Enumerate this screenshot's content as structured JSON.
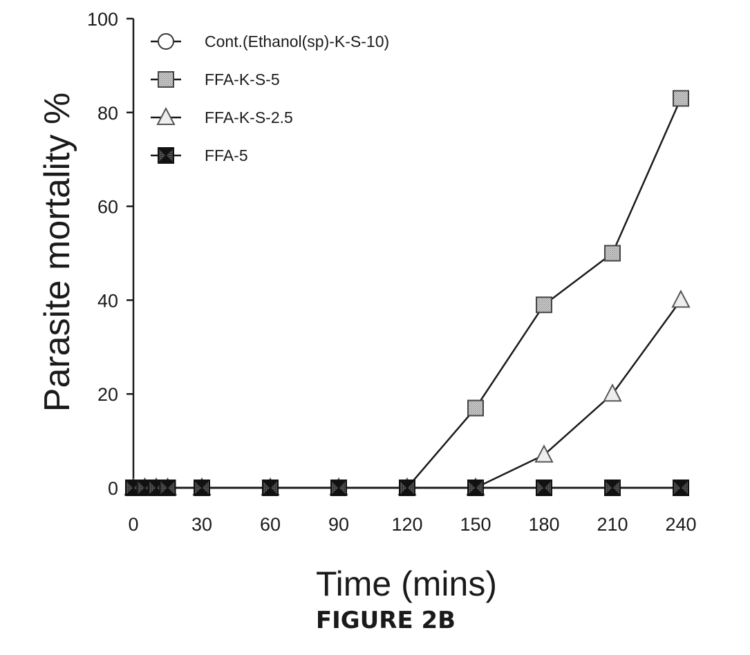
{
  "caption": "FIGURE 2B",
  "chart_data": {
    "type": "line",
    "title": "",
    "xlabel": "Time (mins)",
    "ylabel": "Parasite mortality %",
    "x_ticks": [
      0,
      30,
      60,
      90,
      120,
      150,
      180,
      210,
      240
    ],
    "y_ticks": [
      0,
      20,
      40,
      60,
      80,
      100
    ],
    "xlim": [
      0,
      240
    ],
    "ylim": [
      0,
      100
    ],
    "grid": false,
    "legend_position": "top-left",
    "x": [
      0,
      5,
      10,
      15,
      30,
      60,
      90,
      120,
      150,
      180,
      210,
      240
    ],
    "series": [
      {
        "name": "Cont.(Ethanol(sp)-K-S-10)",
        "marker": "circle",
        "values": [
          0,
          0,
          0,
          0,
          0,
          0,
          0,
          0,
          0,
          0,
          0,
          0
        ]
      },
      {
        "name": "FFA-K-S-5",
        "marker": "square",
        "values": [
          0,
          0,
          0,
          0,
          0,
          0,
          0,
          0,
          17,
          39,
          50,
          83
        ]
      },
      {
        "name": "FFA-K-S-2.5",
        "marker": "triangle",
        "values": [
          0,
          0,
          0,
          0,
          0,
          0,
          0,
          0,
          0,
          7,
          20,
          40
        ]
      },
      {
        "name": "FFA-5",
        "marker": "bowtie",
        "values": [
          0,
          0,
          0,
          0,
          0,
          0,
          0,
          0,
          0,
          0,
          0,
          0
        ]
      }
    ]
  }
}
